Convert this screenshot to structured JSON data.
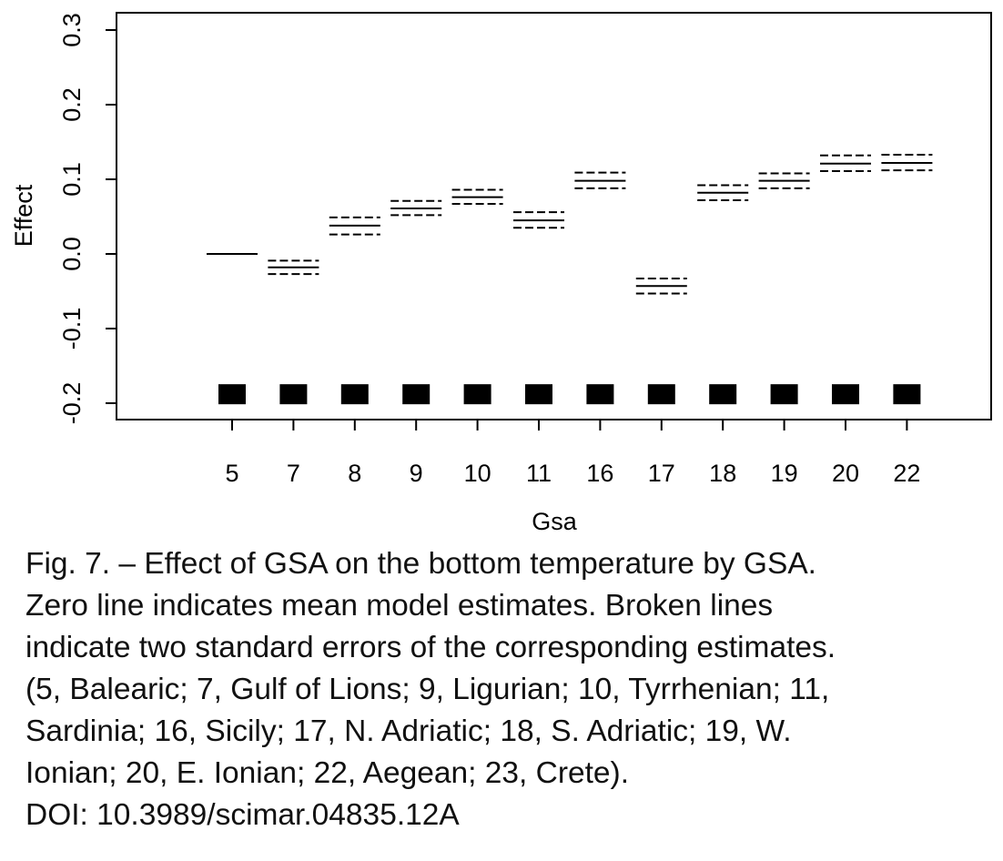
{
  "chart_data": {
    "type": "scatter",
    "xlabel": "Gsa",
    "ylabel": "Effect",
    "ylim": [
      -0.2,
      0.3
    ],
    "yticks": [
      "-0.2",
      "-0.1",
      "0.0",
      "0.1",
      "0.2",
      "0.3"
    ],
    "categories": [
      "5",
      "7",
      "8",
      "9",
      "10",
      "11",
      "16",
      "17",
      "18",
      "19",
      "20",
      "22"
    ],
    "estimates": [
      0.0,
      -0.018,
      0.038,
      0.061,
      0.076,
      0.045,
      0.098,
      -0.043,
      0.082,
      0.098,
      0.121,
      0.122
    ],
    "se_lower": [
      null,
      -0.027,
      0.026,
      0.052,
      0.067,
      0.035,
      0.088,
      -0.053,
      0.072,
      0.088,
      0.111,
      0.112
    ],
    "se_upper": [
      null,
      -0.009,
      0.049,
      0.071,
      0.086,
      0.056,
      0.109,
      -0.033,
      0.092,
      0.108,
      0.132,
      0.133
    ],
    "rug_value": -0.188,
    "grid": false,
    "legend": "none"
  },
  "caption": {
    "lines": [
      "Fig. 7. – Effect of GSA on the bottom temperature by GSA.",
      "Zero line indicates mean model estimates. Broken lines",
      "indicate two standard errors of the corresponding estimates.",
      "(5, Balearic; 7, Gulf of Lions; 9, Ligurian; 10, Tyrrhenian; 11,",
      "Sardinia; 16, Sicily; 17, N. Adriatic; 18, S. Adriatic; 19, W.",
      "Ionian; 20, E. Ionian; 22, Aegean; 23, Crete).",
      "DOI: 10.3989/scimar.04835.12A"
    ]
  }
}
